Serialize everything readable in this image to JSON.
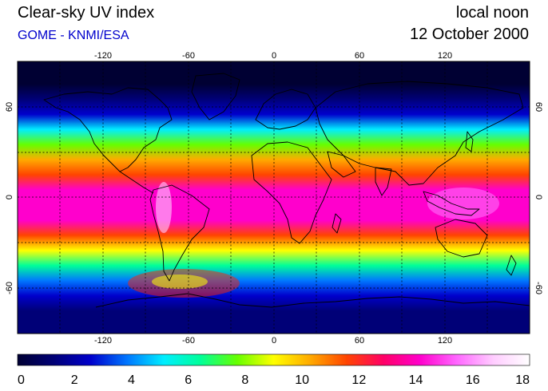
{
  "header": {
    "title": "Clear-sky UV index",
    "subtitle": "GOME - KNMI/ESA",
    "time_label": "local noon",
    "date_label": "12 October 2000",
    "subtitle_color": "#0000cc"
  },
  "map": {
    "projection": "equirectangular",
    "lon_range": [
      -180,
      180
    ],
    "lat_range": [
      -90,
      90
    ],
    "grid": true,
    "lon_ticks": [
      -120,
      -60,
      0,
      60,
      120
    ],
    "lat_ticks": [
      -60,
      0,
      60
    ],
    "lon_tick_labels": [
      "-120",
      "-60",
      "0",
      "60",
      "120"
    ],
    "lat_tick_labels": [
      "-60",
      "0",
      "60"
    ],
    "uv_by_latitude": [
      {
        "lat": 90,
        "uv": 0
      },
      {
        "lat": 75,
        "uv": 0.5
      },
      {
        "lat": 65,
        "uv": 1.5
      },
      {
        "lat": 55,
        "uv": 3
      },
      {
        "lat": 45,
        "uv": 5
      },
      {
        "lat": 35,
        "uv": 7.5
      },
      {
        "lat": 25,
        "uv": 10
      },
      {
        "lat": 15,
        "uv": 12
      },
      {
        "lat": 5,
        "uv": 14
      },
      {
        "lat": -5,
        "uv": 14.5
      },
      {
        "lat": -15,
        "uv": 13.5
      },
      {
        "lat": -25,
        "uv": 11.5
      },
      {
        "lat": -35,
        "uv": 9
      },
      {
        "lat": -45,
        "uv": 6
      },
      {
        "lat": -55,
        "uv": 4
      },
      {
        "lat": -65,
        "uv": 2.5
      },
      {
        "lat": -75,
        "uv": 1.5
      },
      {
        "lat": -90,
        "uv": 1
      }
    ]
  },
  "colorbar": {
    "min": 0,
    "max": 18,
    "tick_labels": [
      "0",
      "2",
      "4",
      "6",
      "8",
      "10",
      "12",
      "14",
      "16",
      "18"
    ],
    "colors": [
      "#000033",
      "#000077",
      "#0000cc",
      "#0077ff",
      "#00eeff",
      "#00ff99",
      "#66ff00",
      "#ffff00",
      "#ffaa00",
      "#ff4400",
      "#ff0066",
      "#ff00cc",
      "#ff66ff",
      "#ffccff",
      "#ffffff"
    ]
  }
}
